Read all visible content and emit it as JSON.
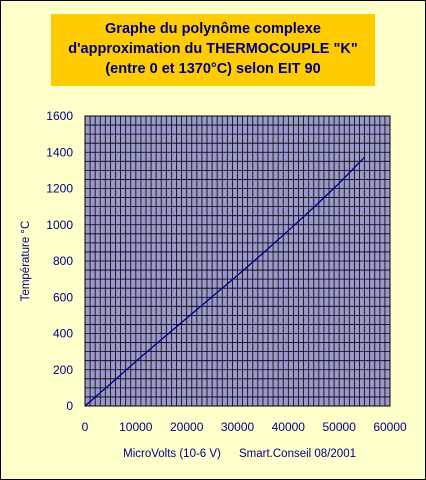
{
  "title": {
    "line1": "Graphe du polynôme complexe",
    "line2": "d'approximation du THERMOCOUPLE \"K\"",
    "line3": "(entre 0 et 1370°C) selon EIT 90"
  },
  "footer_credit": "Smart.Conseil 08/2001",
  "colors": {
    "background": "#FFFFCC",
    "title_box": "#FFCC00",
    "text": "#000080",
    "plot_bg": "#9999CC",
    "grid": "#000000",
    "line": "#000080"
  },
  "chart_data": {
    "type": "line",
    "xlabel": "MicroVolts (10-6 V)",
    "ylabel": "Température °C",
    "xlim": [
      0,
      60000
    ],
    "ylim": [
      0,
      1600
    ],
    "x_ticks": [
      "0",
      "10000",
      "20000",
      "30000",
      "40000",
      "50000",
      "60000"
    ],
    "y_ticks": [
      "0",
      "200",
      "400",
      "600",
      "800",
      "1000",
      "1200",
      "1400",
      "1600"
    ],
    "grid": true,
    "series": [
      {
        "x": [
          0,
          5000,
          10000,
          15000,
          20000,
          25000,
          30000,
          35000,
          40000,
          45000,
          50000,
          54900
        ],
        "y": [
          0,
          122,
          246,
          366,
          484,
          603,
          721,
          843,
          968,
          1096,
          1229,
          1370
        ]
      }
    ]
  }
}
